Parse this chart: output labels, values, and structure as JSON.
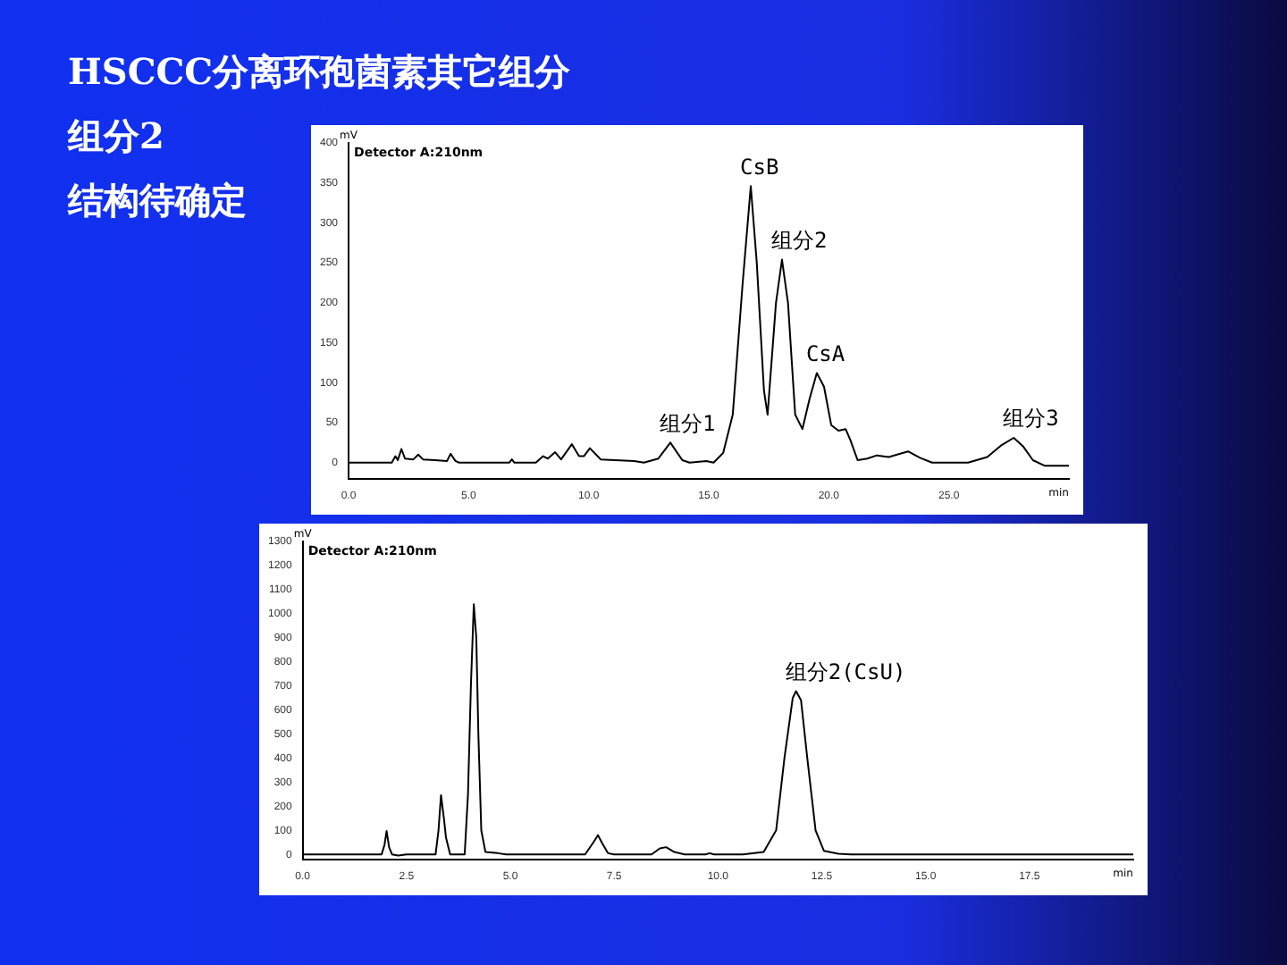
{
  "chart_data": [
    {
      "type": "line",
      "title": "HSCCC分离环孢菌素其它组分",
      "subtitle": "组分2\n结构待确定",
      "xlabel": "min",
      "ylabel": "mV",
      "marker": "none",
      "xlim": [
        0,
        30
      ],
      "ylim": [
        -20,
        400
      ],
      "xticks": [
        {
          "value": 0,
          "label": "0.0"
        },
        {
          "value": 5,
          "label": "5.0"
        },
        {
          "value": 10,
          "label": "10.0"
        },
        {
          "value": 15,
          "label": "15.0"
        },
        {
          "value": 20,
          "label": "20.0"
        },
        {
          "value": 25,
          "label": "25.0"
        }
      ],
      "yticks": [
        0,
        50,
        100,
        150,
        200,
        250,
        300,
        350,
        400
      ],
      "series": [
        {
          "color": "#000000",
          "x": [
            0,
            1.8,
            1.95,
            2.05,
            2.2,
            2.35,
            2.7,
            2.9,
            3.1,
            3.6,
            4.1,
            4.25,
            4.45,
            4.6,
            6.7,
            6.8,
            6.9,
            7.8,
            8.1,
            8.3,
            8.6,
            8.85,
            9.3,
            9.6,
            9.8,
            10.05,
            10.5,
            11.9,
            12.3,
            12.9,
            13.4,
            13.9,
            14.2,
            14.9,
            15.2,
            15.6,
            16.0,
            16.4,
            16.75,
            17.0,
            17.3,
            17.45,
            17.8,
            18.05,
            18.3,
            18.6,
            18.9,
            19.2,
            19.5,
            19.8,
            20.1,
            20.4,
            20.7,
            20.9,
            21.2,
            21.6,
            22.0,
            22.5,
            23.3,
            23.8,
            24.3,
            25.8,
            26.6,
            27.2,
            27.7,
            28.1,
            28.5,
            29.0,
            30
          ],
          "values": [
            0,
            0,
            8,
            3,
            17,
            5,
            4,
            10,
            4,
            3,
            2,
            11,
            2,
            0,
            0,
            4,
            0,
            0,
            8,
            5,
            13,
            4,
            23,
            8,
            8,
            18,
            4,
            2,
            0,
            5,
            25,
            3,
            0,
            2,
            0,
            12,
            60,
            220,
            346,
            250,
            90,
            60,
            200,
            254,
            200,
            60,
            42,
            80,
            112,
            95,
            47,
            40,
            42,
            28,
            3,
            5,
            9,
            7,
            14,
            6,
            0,
            0,
            7,
            22,
            31,
            20,
            3,
            -4,
            -4
          ]
        }
      ],
      "annotations": [
        "Detector A:210nm",
        {
          "text": "CsB",
          "x": 16.75,
          "y": 346
        },
        {
          "text": "组分2",
          "x": 18.05,
          "y": 254
        },
        {
          "text": "CsA",
          "x": 19.5,
          "y": 112
        },
        {
          "text": "组分1",
          "x": 13.4,
          "y": 25
        },
        {
          "text": "组分3",
          "x": 27.7,
          "y": 31
        }
      ]
    },
    {
      "type": "line",
      "xlabel": "min",
      "ylabel": "mV",
      "marker": "none",
      "xlim": [
        0,
        20
      ],
      "ylim": [
        -20,
        1300
      ],
      "xticks": [
        {
          "value": 0,
          "label": "0.0"
        },
        {
          "value": 2.5,
          "label": "2.5"
        },
        {
          "value": 5,
          "label": "5.0"
        },
        {
          "value": 7.5,
          "label": "7.5"
        },
        {
          "value": 10,
          "label": "10.0"
        },
        {
          "value": 12.5,
          "label": "12.5"
        },
        {
          "value": 15,
          "label": "15.0"
        },
        {
          "value": 17.5,
          "label": "17.5"
        }
      ],
      "yticks": [
        0,
        100,
        200,
        300,
        400,
        500,
        600,
        700,
        800,
        900,
        1000,
        1100,
        1200,
        1300
      ],
      "series": [
        {
          "color": "#000000",
          "x": [
            0,
            1.9,
            1.97,
            2.02,
            2.08,
            2.15,
            2.3,
            2.5,
            2.8,
            3.2,
            3.27,
            3.33,
            3.4,
            3.45,
            3.55,
            3.9,
            3.98,
            4.05,
            4.12,
            4.18,
            4.23,
            4.3,
            4.4,
            4.7,
            4.9,
            6.8,
            7.0,
            7.11,
            7.2,
            7.35,
            7.5,
            8.4,
            8.6,
            8.75,
            8.95,
            9.2,
            9.7,
            9.8,
            9.9,
            10.6,
            11.1,
            11.4,
            11.6,
            11.8,
            11.88,
            12.0,
            12.15,
            12.35,
            12.55,
            12.9,
            13.2,
            20
          ],
          "values": [
            0,
            0,
            40,
            97,
            30,
            0,
            -5,
            0,
            0,
            0,
            100,
            246,
            150,
            70,
            0,
            0,
            250,
            700,
            1039,
            900,
            500,
            100,
            10,
            5,
            0,
            0,
            50,
            80,
            50,
            5,
            0,
            0,
            25,
            30,
            10,
            0,
            0,
            5,
            0,
            0,
            10,
            100,
            400,
            650,
            678,
            640,
            400,
            100,
            15,
            3,
            0,
            0
          ]
        }
      ],
      "annotations": [
        "Detector A:210nm",
        {
          "text": "组分2(CsU)",
          "x": 11.88,
          "y": 678
        }
      ]
    }
  ]
}
